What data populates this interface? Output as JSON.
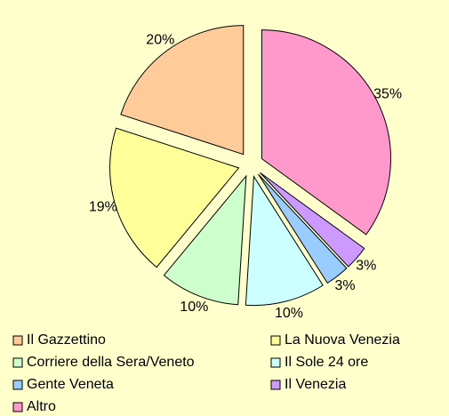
{
  "chart_data": {
    "type": "pie",
    "categories": [
      "Il Gazzettino",
      "La Nuova Venezia",
      "Corriere della Sera/Veneto",
      "Il Sole 24 ore",
      "Gente Veneta",
      "Il Venezia",
      "Altro"
    ],
    "values": [
      20,
      19,
      10,
      10,
      3,
      3,
      35
    ],
    "value_labels": [
      "20%",
      "19%",
      "10%",
      "10%",
      "3%",
      "3%",
      "35%"
    ],
    "colors": [
      "#FFCC99",
      "#FFFF99",
      "#CCFFCC",
      "#CCFFFF",
      "#99CCFF",
      "#CC99FF",
      "#FF99CC"
    ],
    "legend": "bottom"
  }
}
